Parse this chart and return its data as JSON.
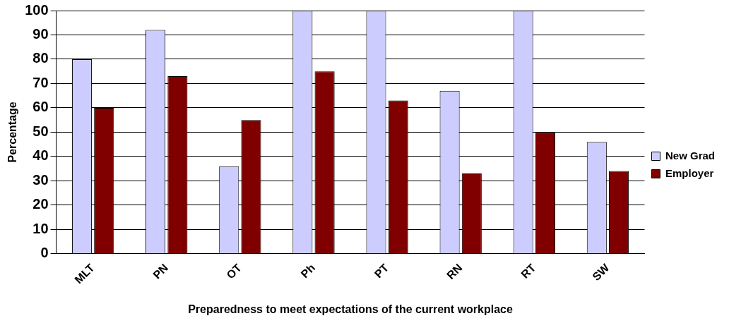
{
  "chart_data": {
    "type": "bar",
    "xlabel": "Preparedness to meet expectations of the current workplace",
    "ylabel": "Percentage",
    "categories": [
      "MLT",
      "PN",
      "OT",
      "Ph",
      "PT",
      "RN",
      "RT",
      "SW"
    ],
    "series": [
      {
        "name": "New Grad",
        "color": "#ccccff",
        "values": [
          80,
          92,
          36,
          100,
          100,
          67,
          100,
          46
        ]
      },
      {
        "name": "Employer",
        "color": "#800000",
        "values": [
          60,
          73,
          55,
          75,
          63,
          33,
          50,
          34
        ]
      }
    ],
    "ylim": [
      0,
      100
    ],
    "yticks": [
      0,
      10,
      20,
      30,
      40,
      50,
      60,
      70,
      80,
      90,
      100
    ],
    "grid": "y",
    "legend": "right"
  }
}
